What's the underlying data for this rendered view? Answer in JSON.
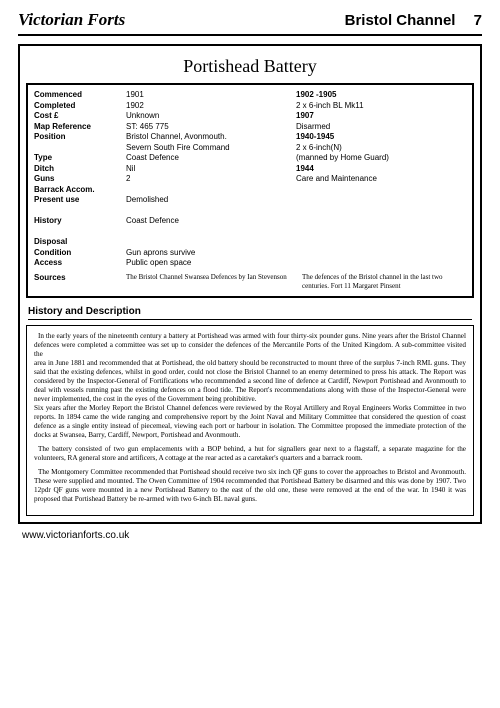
{
  "header": {
    "left": "Victorian Forts",
    "right_location": "Bristol Channel",
    "right_page": "7"
  },
  "title": "Portishead Battery",
  "info": {
    "labels": [
      "Commenced",
      "Completed",
      "Cost            £",
      "Map Reference",
      "Position",
      "",
      "Type",
      "Ditch",
      "Guns",
      "Barrack Accom.",
      "Present use",
      "",
      "History",
      "",
      "Disposal",
      "Condition",
      "Access"
    ],
    "left": [
      "1901",
      "1902",
      "Unknown",
      "ST: 465 775",
      "Bristol Channel, Avonmouth.",
      "Severn South Fire Command",
      "Coast Defence",
      "Nil",
      "2",
      "",
      "Demolished",
      "",
      "Coast Defence",
      "",
      "",
      "Gun aprons survive",
      "Public open space"
    ],
    "right": [
      "1902 -1905",
      "2 x 6-inch BL Mk11",
      "1907",
      "Disarmed",
      "1940-1945",
      "2 x 6-inch(N)",
      "(manned by Home Guard)",
      "1944",
      "Care and Maintenance",
      "",
      "",
      "",
      "",
      "",
      "",
      "",
      ""
    ],
    "right_bold": [
      true,
      false,
      true,
      false,
      true,
      false,
      false,
      true,
      false,
      false,
      false,
      false,
      false,
      false,
      false,
      false,
      false
    ]
  },
  "sources": {
    "label": "Sources",
    "left": "The Bristol Channel Swansea Defences by Ian Stevenson",
    "right": "The defences of the Bristol channel in the last two centuries. Fort 11 Margaret Pinsent"
  },
  "section_head": "History and Description",
  "body": {
    "p1": "In the early years of the nineteenth century a battery at Portishead was armed with four thirty-six pounder guns. Nine years after the Bristol Channel defences were completed a committee was set up to consider the defences of the Mercantile Ports of the United Kingdom. A sub-committee visited the",
    "p2": "area in June 1881 and recommended that at Portishead, the old battery should be reconstructed to mount three of the surplus 7-inch RML guns. They said that the existing defences, whilst in good order, could not close the Bristol Channel to an enemy determined to press his attack. The Report was considered by the Inspector-General of Fortifications who recommended a second line of defence at Cardiff, Newport Portishead and Avonmouth to deal with vessels running past the existing defences on a flood tide. The Report's recommendations along with those of the Inspector-General were never implemented, the cost in the eyes of the Government being prohibitive.",
    "p3": "Six years after the Morley Report the Bristol Channel defences were reviewed by the Royal Artillery and Royal Engineers Works Committee in two reports. In 1894 came the wide ranging and comprehensive report by the Joint Naval and Military Committee that considered the question of coast defence as a single entity instead of piecemeal, viewing each port or harbour in isolation. The Committee proposed the immediate protection of the docks at Swansea, Barry, Cardiff, Newport, Portishead and Avonmouth.",
    "p4": "The battery consisted of two gun emplacements with a BOP behind, a hut for signallers gear next to a flagstaff, a separate magazine for the volunteers, RA general store and artificers, A cottage at the rear acted as a caretaker's quarters and a barrack room.",
    "p5": "The Montgomery Committee recommended that Portishead should receive two six inch QF guns to cover the approaches to Bristol and Avonmouth. These were supplied and mounted. The Owen Committee of 1904 recommended that Portishead Battery be disarmed and this was done by 1907. Two 12pdr QF guns were mounted in a new Portishead Battery to the east of the old one, these were removed at the end of the war. In 1940 it was proposed that Portishead Battery be re-armed with two 6-inch BL naval guns."
  },
  "footer": "www.victorianforts.co.uk",
  "style": {
    "bg": "#ffffff",
    "text": "#000000",
    "border": "#000000"
  }
}
